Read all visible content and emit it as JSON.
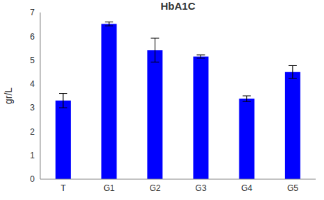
{
  "chart_data": {
    "type": "bar",
    "title": "HbA1C",
    "y_label": "gr/L",
    "categories": [
      "T",
      "G1",
      "G2",
      "G3",
      "G4",
      "G5"
    ],
    "values": [
      3.3,
      6.52,
      5.42,
      5.15,
      3.38,
      4.5
    ],
    "error": [
      0.3,
      0.08,
      0.5,
      0.07,
      0.12,
      0.27
    ],
    "color": "#0000ff",
    "ylim": [
      0,
      7
    ],
    "yticks": [
      0,
      1,
      2,
      3,
      4,
      5,
      6,
      7
    ],
    "grid": false
  }
}
